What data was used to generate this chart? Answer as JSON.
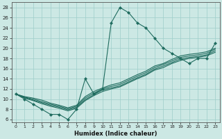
{
  "xlabel": "Humidex (Indice chaleur)",
  "bg_color": "#cce8e4",
  "line_color": "#1e6b5e",
  "grid_color": "#9ececa",
  "xlim": [
    -0.5,
    23.5
  ],
  "ylim": [
    5.5,
    29
  ],
  "xticks": [
    0,
    1,
    2,
    3,
    4,
    5,
    6,
    7,
    8,
    9,
    10,
    11,
    12,
    13,
    14,
    15,
    16,
    17,
    18,
    19,
    20,
    21,
    22,
    23
  ],
  "yticks": [
    6,
    8,
    10,
    12,
    14,
    16,
    18,
    20,
    22,
    24,
    26,
    28
  ],
  "y_main": [
    11,
    10,
    9,
    8,
    7,
    7,
    6,
    8,
    14,
    11,
    12,
    25,
    28,
    27,
    25,
    24,
    22,
    20,
    19,
    18,
    17,
    18,
    18,
    21
  ],
  "y_line1": [
    11,
    10.5,
    10.2,
    9.8,
    9.2,
    8.8,
    8.3,
    8.8,
    10.5,
    11.5,
    12.2,
    12.8,
    13.2,
    14.0,
    14.8,
    15.5,
    16.5,
    17.0,
    17.8,
    18.5,
    18.8,
    19.0,
    19.3,
    20.0
  ],
  "y_line2": [
    11,
    10.4,
    10.0,
    9.5,
    9.0,
    8.6,
    8.1,
    8.6,
    10.2,
    11.2,
    12.0,
    12.5,
    12.9,
    13.7,
    14.5,
    15.2,
    16.2,
    16.8,
    17.5,
    18.2,
    18.5,
    18.7,
    19.0,
    19.8
  ],
  "y_line3": [
    11,
    10.3,
    9.8,
    9.3,
    8.8,
    8.4,
    7.9,
    8.4,
    9.9,
    10.9,
    11.8,
    12.2,
    12.6,
    13.4,
    14.2,
    14.9,
    15.9,
    16.5,
    17.2,
    17.9,
    18.2,
    18.4,
    18.7,
    19.5
  ],
  "y_line4": [
    11,
    10.2,
    9.7,
    9.1,
    8.6,
    8.2,
    7.7,
    8.2,
    9.7,
    10.7,
    11.5,
    12.0,
    12.4,
    13.2,
    14.0,
    14.7,
    15.7,
    16.2,
    17.0,
    17.6,
    18.0,
    18.2,
    18.5,
    19.2
  ]
}
